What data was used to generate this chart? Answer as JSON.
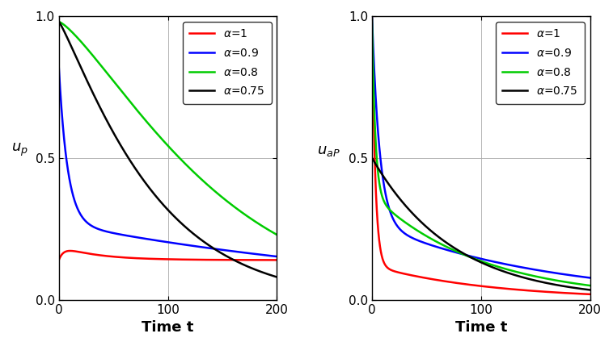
{
  "xlim": [
    0,
    200
  ],
  "ylim": [
    0,
    1.0
  ],
  "yticks": [
    0,
    0.5,
    1
  ],
  "xticks": [
    0,
    100,
    200
  ],
  "xlabel": "Time t",
  "ylabel_left": "u_p",
  "ylabel_right": "u_aP",
  "colors": {
    "alpha1": "#ff0000",
    "alpha09": "#0000ff",
    "alpha08": "#00cc00",
    "alpha075": "#000000"
  },
  "linewidth": 1.8,
  "figsize": [
    7.58,
    4.29
  ],
  "dpi": 100,
  "left_red_params": {
    "A": 0.0,
    "tau1": 3,
    "B": 0.14,
    "tau2": 300,
    "hump_A": 0.04,
    "hump_tau1": 4,
    "hump_tau2": 40
  },
  "left_blue_params": {
    "A": 0.55,
    "tau1": 8,
    "B": 0.27,
    "tau2": 350
  },
  "left_green_params": {
    "A": 0.98,
    "tau1": 150,
    "pow": 1.3
  },
  "left_black_params": {
    "A": 0.98,
    "tau1": 90,
    "pow": 1.15
  },
  "right_red_params": {
    "A": 0.88,
    "tau1": 3,
    "B": 0.12,
    "tau2": 110
  },
  "right_blue_params": {
    "A": 0.73,
    "tau1": 7,
    "B": 0.27,
    "tau2": 160
  },
  "right_green_params": {
    "A": 0.62,
    "tau1": 3,
    "B": 0.37,
    "tau2": 100
  },
  "right_black_params": {
    "A": 0.5,
    "tau1": 75
  }
}
